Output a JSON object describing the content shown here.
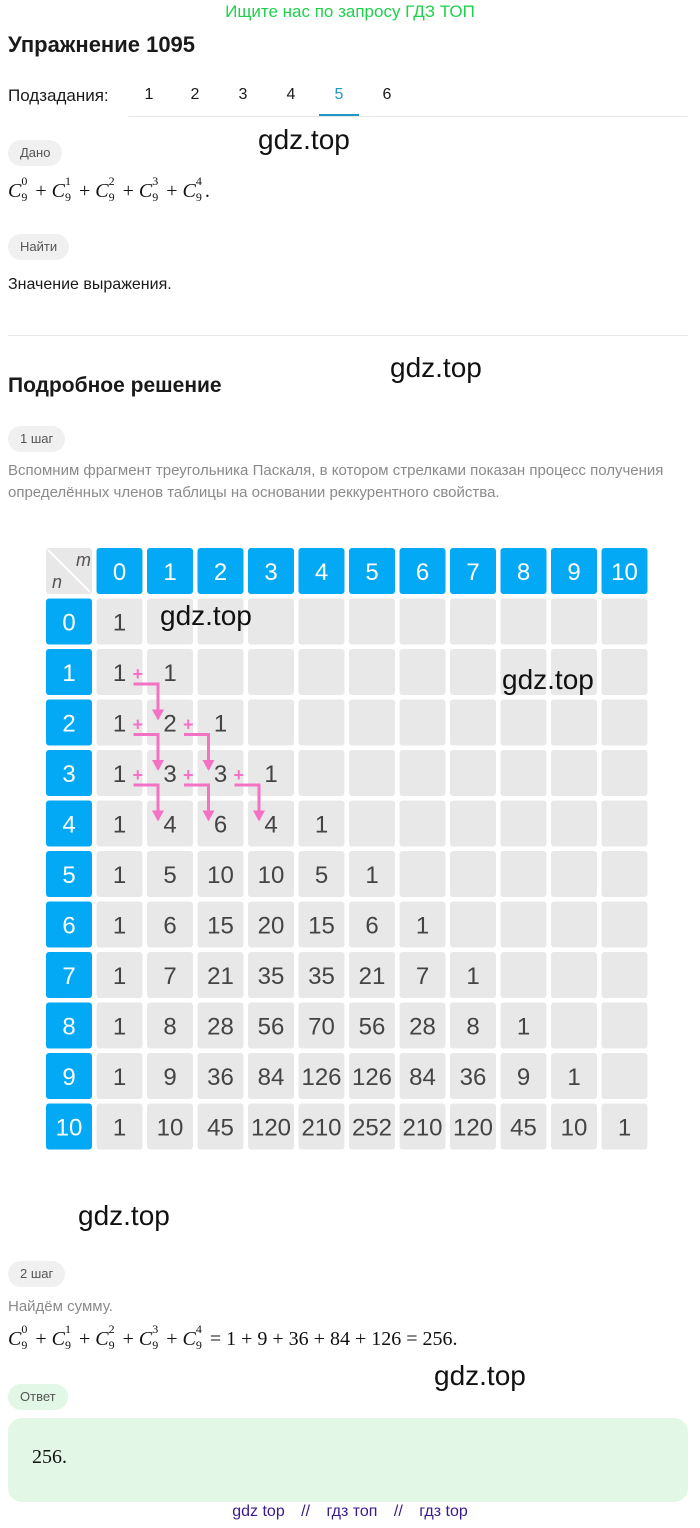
{
  "promo": "Ищите нас по запросу ГДЗ ТОП",
  "title": "Упражнение 1095",
  "subtasks": {
    "label": "Подзадания:",
    "items": [
      "1",
      "2",
      "3",
      "4",
      "5",
      "6"
    ],
    "active": "5"
  },
  "given": {
    "chip": "Дано",
    "expr": {
      "terms": [
        {
          "base": "C",
          "sub": "9",
          "sup": "0"
        },
        {
          "base": "C",
          "sub": "9",
          "sup": "1"
        },
        {
          "base": "C",
          "sub": "9",
          "sup": "2"
        },
        {
          "base": "C",
          "sub": "9",
          "sup": "3"
        },
        {
          "base": "C",
          "sub": "9",
          "sup": "4"
        }
      ],
      "op": "+",
      "end": "."
    }
  },
  "find": {
    "chip": "Найти",
    "text": "Значение выражения."
  },
  "solution_title": "Подробное решение",
  "step1": {
    "chip": "1 шаг",
    "text": "Вспомним фрагмент треугольника Паскаля, в котором стрелками показан процесс получения определённых членов таблицы на основании реккурентного свойства."
  },
  "table": {
    "corner_m": "m",
    "corner_n": "n",
    "plus": "+",
    "header_cols": [
      "0",
      "1",
      "2",
      "3",
      "4",
      "5",
      "6",
      "7",
      "8",
      "9",
      "10"
    ],
    "header_rows": [
      "0",
      "1",
      "2",
      "3",
      "4",
      "5",
      "6",
      "7",
      "8",
      "9",
      "10"
    ],
    "rows": [
      [
        "1"
      ],
      [
        "1",
        "1"
      ],
      [
        "1",
        "2",
        "1"
      ],
      [
        "1",
        "3",
        "3",
        "1"
      ],
      [
        "1",
        "4",
        "6",
        "4",
        "1"
      ],
      [
        "1",
        "5",
        "10",
        "10",
        "5",
        "1"
      ],
      [
        "1",
        "6",
        "15",
        "20",
        "15",
        "6",
        "1"
      ],
      [
        "1",
        "7",
        "21",
        "35",
        "35",
        "21",
        "7",
        "1"
      ],
      [
        "1",
        "8",
        "28",
        "56",
        "70",
        "56",
        "28",
        "8",
        "1"
      ],
      [
        "1",
        "9",
        "36",
        "84",
        "126",
        "126",
        "84",
        "36",
        "9",
        "1"
      ],
      [
        "1",
        "10",
        "45",
        "120",
        "210",
        "252",
        "210",
        "120",
        "45",
        "10",
        "1"
      ]
    ],
    "colors": {
      "header": "#03a9f4",
      "cell": "#e8e8e8",
      "arrow": "#f472c4",
      "number": "#444444"
    }
  },
  "step2": {
    "chip": "2 шаг",
    "text": "Найдём сумму.",
    "expr": {
      "lhs": [
        {
          "base": "C",
          "sub": "9",
          "sup": "0"
        },
        {
          "base": "C",
          "sub": "9",
          "sup": "1"
        },
        {
          "base": "C",
          "sub": "9",
          "sup": "2"
        },
        {
          "base": "C",
          "sub": "9",
          "sup": "3"
        },
        {
          "base": "C",
          "sub": "9",
          "sup": "4"
        }
      ],
      "op": "+",
      "eq": "=",
      "rhs": "1 + 9 + 36 + 84 + 126 = 256."
    }
  },
  "answer": {
    "chip": "Ответ",
    "value": "256."
  },
  "watermark": "gdz.top",
  "footer": [
    "gdz top",
    "//",
    "гдз топ",
    "//",
    "гдз top"
  ]
}
